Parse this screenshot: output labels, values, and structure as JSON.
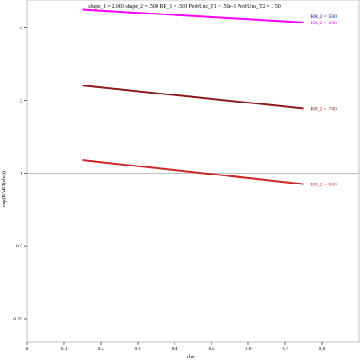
{
  "chart_data": {
    "type": "line",
    "title": "shape_1 = 2.000  shape_2 = .500  RR_1 = .500  ProbUnc_T1 = .50e-1  ProbUnc_T2 = .150",
    "xlabel": "rho",
    "ylabel": "exp(EAET(rho))",
    "xlim": [
      0,
      0.9
    ],
    "ylim": [
      0.2,
      5.2
    ],
    "y_scale": "log",
    "x_ticks": [
      0,
      0.1,
      0.2,
      0.3,
      0.4,
      0.5,
      0.6,
      0.7,
      0.8
    ],
    "x_tick_labels": [
      "0",
      "0.1",
      "0.2",
      "0.3",
      "0.4",
      "0.5",
      "0.6",
      "0.7",
      "0.8"
    ],
    "y_ticks": [
      0.25,
      0.5,
      1,
      2,
      4
    ],
    "y_tick_labels": [
      "0.25",
      "0.5",
      "1",
      "2",
      "4"
    ],
    "reference_line": 1,
    "grid": false,
    "series": [
      {
        "name": "RR_2 = .500",
        "color": "#00008b",
        "x": [
          0.15,
          0.75
        ],
        "y": [
          4.75,
          4.45
        ],
        "label_only": true
      },
      {
        "name": "RR_2 = .600",
        "color": "#ff00ff",
        "x": [
          0.15,
          0.75
        ],
        "y": [
          4.75,
          4.2
        ]
      },
      {
        "name": "RR_2 = .700",
        "color": "#8b1a1a",
        "x": [
          0.15,
          0.75
        ],
        "y": [
          2.3,
          1.85
        ]
      },
      {
        "name": "RR_2 = .800",
        "color": "#cd2626",
        "x": [
          0.15,
          0.75
        ],
        "y": [
          1.13,
          0.9
        ]
      }
    ]
  }
}
